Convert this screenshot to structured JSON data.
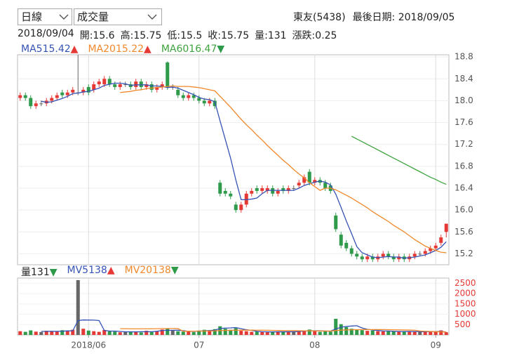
{
  "header": {
    "period": "日線",
    "indicator": "成交量",
    "stock": "東友(5438)",
    "last_date": "最後日期: 2018/09/05"
  },
  "info": {
    "date": "2018/09/04",
    "items": [
      {
        "label": "開:",
        "value": 15.6
      },
      {
        "label": "高:",
        "value": 15.75
      },
      {
        "label": "低:",
        "value": 15.5
      },
      {
        "label": "收:",
        "value": 15.75
      },
      {
        "label": "量:",
        "value": 131
      },
      {
        "label": "漲跌:",
        "value": 0.25
      }
    ]
  },
  "chart_data": [
    {
      "type": "candlestick",
      "up_color": "#e53935",
      "down_color": "#2e9a4a",
      "flat_color": "#666666",
      "open": [
        18.05,
        18.1,
        18.05,
        17.9,
        17.95,
        17.95,
        18.0,
        18.05,
        18.15,
        18.1,
        18.15,
        18.15,
        18.15,
        18.25,
        18.2,
        18.3,
        18.3,
        18.4,
        18.3,
        18.25,
        18.3,
        18.3,
        18.25,
        18.35,
        18.25,
        18.3,
        18.2,
        18.25,
        18.7,
        18.25,
        18.2,
        18.1,
        18.05,
        18.1,
        18.05,
        18.0,
        17.95,
        18.0,
        16.5,
        16.35,
        16.3,
        16.1,
        16.0,
        16.1,
        16.3,
        16.4,
        16.35,
        16.35,
        16.4,
        16.3,
        16.4,
        16.35,
        16.4,
        16.45,
        16.5,
        16.7,
        16.5,
        16.55,
        16.5,
        16.45,
        15.9,
        15.55,
        15.4,
        15.3,
        15.2,
        15.15,
        15.1,
        15.15,
        15.1,
        15.15,
        15.2,
        15.15,
        15.1,
        15.15,
        15.1,
        15.15,
        15.2,
        15.2,
        15.25,
        15.3,
        15.4,
        15.6
      ],
      "high": [
        18.15,
        18.15,
        18.1,
        18.0,
        18.0,
        18.05,
        18.1,
        18.15,
        18.2,
        18.2,
        18.25,
        18.84,
        18.25,
        18.3,
        18.35,
        18.4,
        18.45,
        18.45,
        18.35,
        18.35,
        18.35,
        18.35,
        18.4,
        18.4,
        18.35,
        18.35,
        18.3,
        18.35,
        18.72,
        18.3,
        18.25,
        18.15,
        18.15,
        18.15,
        18.1,
        18.05,
        18.05,
        18.05,
        16.55,
        16.4,
        16.35,
        16.15,
        16.15,
        16.35,
        16.4,
        16.45,
        16.45,
        16.45,
        16.45,
        16.4,
        16.45,
        16.45,
        16.45,
        16.55,
        16.65,
        16.75,
        16.6,
        16.6,
        16.55,
        16.5,
        15.95,
        15.6,
        15.45,
        15.35,
        15.25,
        15.2,
        15.2,
        15.2,
        15.2,
        15.25,
        15.25,
        15.2,
        15.2,
        15.2,
        15.2,
        15.25,
        15.25,
        15.3,
        15.35,
        15.4,
        15.55,
        15.75
      ],
      "low": [
        18.0,
        18.0,
        17.85,
        17.85,
        17.9,
        17.9,
        17.95,
        18.0,
        18.05,
        18.05,
        18.1,
        18.1,
        18.1,
        18.1,
        18.15,
        18.25,
        18.25,
        18.25,
        18.2,
        18.2,
        18.25,
        18.2,
        18.2,
        18.2,
        18.2,
        18.15,
        18.15,
        18.2,
        18.2,
        18.2,
        18.05,
        18.0,
        18.0,
        18.0,
        17.95,
        17.9,
        17.9,
        17.85,
        16.25,
        16.25,
        16.2,
        15.95,
        15.95,
        16.05,
        16.25,
        16.3,
        16.3,
        16.3,
        16.25,
        16.25,
        16.3,
        16.3,
        16.35,
        16.4,
        16.45,
        16.45,
        16.45,
        16.45,
        16.35,
        16.3,
        15.6,
        15.3,
        15.25,
        15.15,
        15.1,
        15.05,
        15.05,
        15.05,
        15.05,
        15.1,
        15.1,
        15.05,
        15.05,
        15.05,
        15.05,
        15.1,
        15.15,
        15.15,
        15.2,
        15.25,
        15.35,
        15.5
      ],
      "close": [
        18.1,
        18.05,
        17.9,
        17.95,
        17.95,
        18.0,
        18.05,
        18.1,
        18.1,
        18.15,
        18.2,
        18.15,
        18.2,
        18.15,
        18.3,
        18.35,
        18.4,
        18.3,
        18.25,
        18.3,
        18.3,
        18.25,
        18.35,
        18.25,
        18.3,
        18.2,
        18.25,
        18.3,
        18.25,
        18.25,
        18.1,
        18.05,
        18.1,
        18.05,
        18.0,
        17.95,
        18.0,
        17.9,
        16.3,
        16.3,
        16.25,
        16.0,
        16.1,
        16.3,
        16.35,
        16.35,
        16.4,
        16.4,
        16.3,
        16.35,
        16.35,
        16.4,
        16.4,
        16.5,
        16.6,
        16.5,
        16.55,
        16.5,
        16.4,
        16.35,
        15.65,
        15.35,
        15.3,
        15.2,
        15.15,
        15.1,
        15.15,
        15.1,
        15.15,
        15.2,
        15.15,
        15.1,
        15.15,
        15.1,
        15.15,
        15.2,
        15.2,
        15.25,
        15.3,
        15.35,
        15.5,
        15.75
      ],
      "xlim": [
        -0.5,
        81.5
      ],
      "xticks": [
        {
          "value": 13,
          "label": "2018/06"
        },
        {
          "value": 34,
          "label": "07"
        },
        {
          "value": 56,
          "label": "08"
        },
        {
          "value": 79,
          "label": "09"
        }
      ],
      "ylim": [
        15.0,
        18.84
      ],
      "yticks": [
        15.2,
        15.6,
        {
          "value": 16,
          "label": "16.0"
        },
        16.4,
        16.8,
        17.2,
        17.6,
        {
          "value": 18,
          "label": "18.0"
        },
        18.4,
        18.8
      ],
      "series": [
        {
          "name": "MA5",
          "color": "#3553b5",
          "last_value": 15.42,
          "arrow": "▲",
          "arrow_color": "#e53935",
          "values": [
            null,
            null,
            null,
            null,
            17.99,
            17.97,
            17.98,
            18.01,
            18.04,
            18.08,
            18.13,
            18.14,
            18.16,
            18.17,
            18.2,
            18.23,
            18.28,
            18.3,
            18.32,
            18.32,
            18.31,
            18.28,
            18.29,
            18.29,
            18.29,
            18.27,
            18.27,
            18.26,
            18.24,
            18.25,
            18.23,
            18.19,
            18.15,
            18.11,
            18.06,
            18.03,
            18.02,
            17.98,
            17.63,
            17.29,
            16.95,
            16.55,
            16.19,
            16.19,
            16.2,
            16.22,
            16.3,
            16.36,
            16.36,
            16.36,
            16.36,
            16.36,
            16.36,
            16.4,
            16.45,
            16.48,
            16.51,
            16.53,
            16.51,
            16.46,
            16.29,
            16.05,
            15.8,
            15.57,
            15.33,
            15.22,
            15.18,
            15.14,
            15.13,
            15.14,
            15.15,
            15.14,
            15.14,
            15.12,
            15.13,
            15.14,
            15.16,
            15.18,
            15.22,
            15.26,
            15.32,
            15.42
          ]
        },
        {
          "name": "MA20",
          "color": "#f0882a",
          "last_value": 15.22,
          "arrow": "▲",
          "arrow_color": "#e53935",
          "values": [
            null,
            null,
            null,
            null,
            null,
            null,
            null,
            null,
            null,
            null,
            null,
            null,
            null,
            null,
            null,
            null,
            null,
            null,
            null,
            18.15,
            18.16,
            18.17,
            18.19,
            18.2,
            18.22,
            18.23,
            18.24,
            18.25,
            18.26,
            18.27,
            18.26,
            18.26,
            18.26,
            18.25,
            18.24,
            18.22,
            18.2,
            18.18,
            18.08,
            17.98,
            17.88,
            17.77,
            17.66,
            17.56,
            17.47,
            17.37,
            17.28,
            17.18,
            17.09,
            17.0,
            16.91,
            16.83,
            16.74,
            16.66,
            16.59,
            16.5,
            16.43,
            16.36,
            16.4,
            16.4,
            16.37,
            16.32,
            16.27,
            16.22,
            16.16,
            16.1,
            16.04,
            15.97,
            15.91,
            15.85,
            15.79,
            15.72,
            15.66,
            15.6,
            15.53,
            15.46,
            15.4,
            15.34,
            15.3,
            15.26,
            15.23,
            15.22
          ]
        },
        {
          "name": "MA60",
          "color": "#3fa33f",
          "last_value": 16.47,
          "arrow": "▼",
          "arrow_color": "#2e9a4a",
          "values": [
            null,
            null,
            null,
            null,
            null,
            null,
            null,
            null,
            null,
            null,
            null,
            null,
            null,
            null,
            null,
            null,
            null,
            null,
            null,
            null,
            null,
            null,
            null,
            null,
            null,
            null,
            null,
            null,
            null,
            null,
            null,
            null,
            null,
            null,
            null,
            null,
            null,
            null,
            null,
            null,
            null,
            null,
            null,
            null,
            null,
            null,
            null,
            null,
            null,
            null,
            null,
            null,
            null,
            null,
            null,
            null,
            null,
            null,
            null,
            null,
            null,
            null,
            null,
            17.35,
            17.3,
            17.25,
            17.2,
            17.15,
            17.1,
            17.05,
            17.0,
            16.95,
            16.9,
            16.85,
            16.8,
            16.75,
            16.7,
            16.65,
            16.6,
            16.56,
            16.51,
            16.47
          ]
        }
      ]
    },
    {
      "type": "volume-bar",
      "legend": {
        "name": "量",
        "value": 131,
        "arrow": "▼",
        "arrow_color": "#2e9a4a"
      },
      "tick_color": "#e53935",
      "values": [
        180,
        150,
        220,
        160,
        140,
        200,
        170,
        160,
        230,
        190,
        250,
        2650,
        300,
        210,
        180,
        150,
        240,
        170,
        160,
        130,
        150,
        140,
        160,
        120,
        200,
        150,
        170,
        260,
        300,
        220,
        180,
        160,
        170,
        140,
        210,
        250,
        200,
        280,
        420,
        300,
        250,
        330,
        200,
        180,
        150,
        160,
        140,
        130,
        150,
        160,
        140,
        170,
        150,
        200,
        220,
        260,
        180,
        150,
        170,
        160,
        780,
        520,
        380,
        300,
        250,
        230,
        200,
        210,
        180,
        170,
        190,
        160,
        150,
        170,
        180,
        160,
        150,
        140,
        150,
        170,
        220,
        131
      ],
      "ylim": [
        0,
        2750
      ],
      "yticks": [
        500,
        1000,
        1500,
        2000,
        2500
      ],
      "series": [
        {
          "name": "MV5",
          "color": "#3553b5",
          "last_value": 138,
          "arrow": "▲",
          "arrow_color": "#e53935",
          "values": [
            null,
            null,
            null,
            null,
            170,
            174,
            178,
            174,
            180,
            198,
            200,
            696,
            724,
            720,
            718,
            698,
            216,
            190,
            184,
            170,
            152,
            150,
            148,
            154,
            154,
            158,
            176,
            216,
            220,
            226,
            228,
            206,
            174,
            176,
            186,
            194,
            214,
            228,
            312,
            330,
            340,
            356,
            300,
            252,
            222,
            174,
            156,
            148,
            146,
            152,
            150,
            154,
            154,
            166,
            188,
            200,
            202,
            198,
            188,
            182,
            288,
            374,
            412,
            430,
            446,
            336,
            272,
            238,
            214,
            196,
            190,
            176,
            170,
            166,
            170,
            166,
            160,
            154,
            158,
            166,
            170,
            138
          ]
        },
        {
          "name": "MV20",
          "color": "#f0882a",
          "last_value": 138,
          "arrow": "▼",
          "arrow_color": "#2e9a4a",
          "values": [
            null,
            null,
            null,
            null,
            null,
            null,
            null,
            null,
            null,
            null,
            null,
            null,
            null,
            null,
            null,
            null,
            null,
            null,
            null,
            300,
            300,
            298,
            296,
            297,
            296,
            296,
            300,
            306,
            310,
            310,
            308,
            180,
            180,
            182,
            186,
            188,
            192,
            198,
            210,
            216,
            222,
            230,
            232,
            232,
            232,
            230,
            228,
            224,
            220,
            214,
            210,
            208,
            206,
            204,
            200,
            198,
            196,
            192,
            188,
            184,
            214,
            232,
            244,
            250,
            254,
            256,
            258,
            260,
            260,
            258,
            254,
            250,
            246,
            240,
            236,
            230,
            190,
            178,
            168,
            160,
            150,
            138
          ]
        }
      ]
    }
  ]
}
